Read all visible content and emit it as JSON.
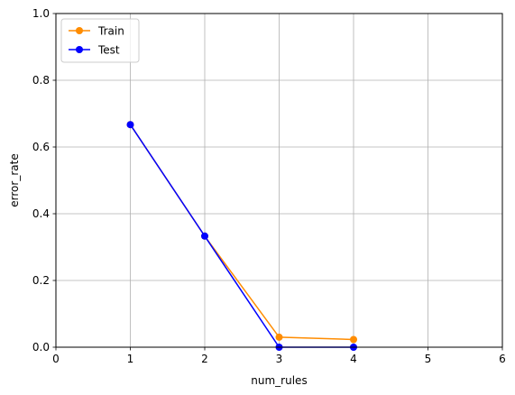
{
  "chart_data": {
    "type": "line",
    "title": "",
    "xlabel": "num_rules",
    "ylabel": "error_rate",
    "xlim": [
      0,
      6
    ],
    "ylim": [
      0,
      1.0
    ],
    "xticks": [
      "0",
      "1",
      "2",
      "3",
      "4",
      "5",
      "6"
    ],
    "yticks": [
      "0.0",
      "0.2",
      "0.4",
      "0.6",
      "0.8",
      "1.0"
    ],
    "grid": true,
    "legend_position": "top-left",
    "x": [
      1,
      2,
      3,
      4
    ],
    "series": [
      {
        "name": "Train",
        "color": "#ff8c00",
        "values": [
          0.667,
          0.333,
          0.03,
          0.023
        ]
      },
      {
        "name": "Test",
        "color": "#0000ff",
        "values": [
          0.667,
          0.333,
          0.0,
          0.0
        ]
      }
    ]
  }
}
